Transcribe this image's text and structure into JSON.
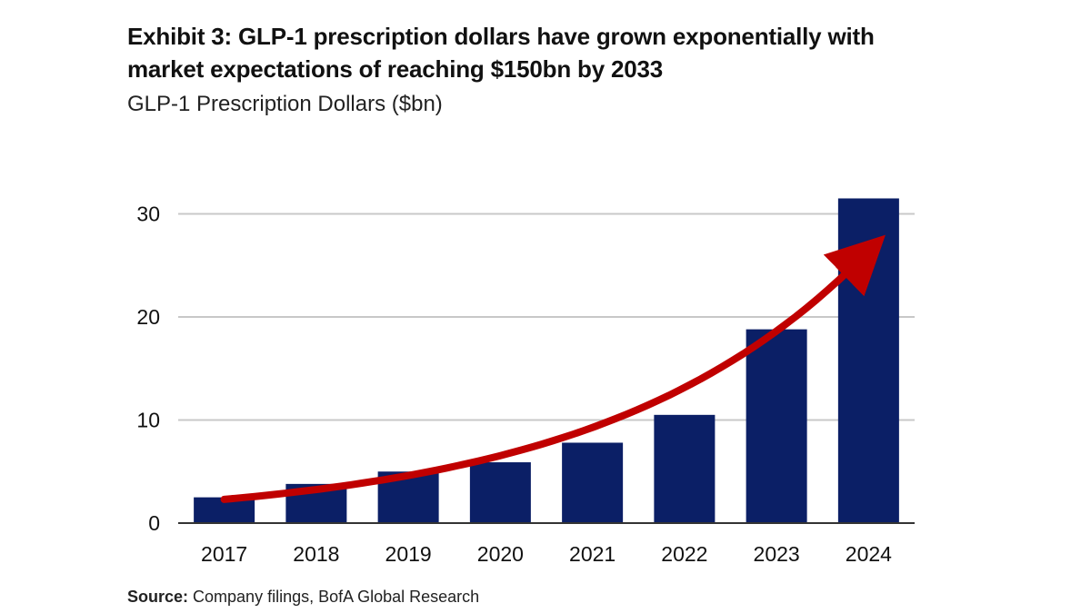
{
  "header": {
    "title": "Exhibit 3: GLP-1 prescription dollars have grown exponentially with market expectations of reaching $150bn by 2033",
    "subtitle": "GLP-1 Prescription Dollars ($bn)"
  },
  "footer": {
    "source_label": "Source:",
    "source_text": " Company filings, BofA Global Research"
  },
  "colors": {
    "bar": "#0b1f66",
    "arrow": "#c00000",
    "grid": "#c8c8c8",
    "axis": "#333333",
    "text": "#111111"
  },
  "chart_data": {
    "type": "bar",
    "title": "Exhibit 3: GLP-1 prescription dollars have grown exponentially with market expectations of reaching $150bn by 2033",
    "subtitle": "GLP-1 Prescription Dollars ($bn)",
    "categories": [
      "2017",
      "2018",
      "2019",
      "2020",
      "2021",
      "2022",
      "2023",
      "2024"
    ],
    "values": [
      2.5,
      3.8,
      5.0,
      5.9,
      7.8,
      10.5,
      18.8,
      31.5
    ],
    "xlabel": "",
    "ylabel": "",
    "ylim": [
      0,
      32
    ],
    "yticks": [
      0,
      10,
      20,
      30
    ],
    "grid": true,
    "legend": "none",
    "annotation": "red upward-curving trend arrow"
  }
}
